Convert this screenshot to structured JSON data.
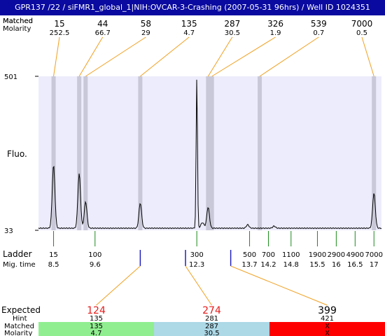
{
  "title": "GPR137 /22 / siFMR1_global_1|NIH:OVCAR-3-Crashing (2007-05-31 96hrs) / Well ID 1024351",
  "header_labels": {
    "matched": "Matched",
    "molarity": "Molarity"
  },
  "axis": {
    "ylabel": "Fluo.",
    "ytick_top": "501",
    "ytick_bottom": "33"
  },
  "ladder_labels": {
    "ladder": "Ladder",
    "mig_time": "Mig. time"
  },
  "bottom_labels": {
    "expected": "Expected",
    "hint": "Hint",
    "matched": "Matched",
    "molarity": "Molarity"
  },
  "colors": {
    "title_bg": "#0a0aa0",
    "plot_bg": "#ececfc",
    "band": "#c8c8d8",
    "orange": "#f0a020",
    "green": "#1a8a1a",
    "blue": "#2020c0",
    "expected_red": "#e81c1c",
    "green_box": "#90ee90",
    "blue_box": "#add8e6",
    "red_box": "#ff0000"
  },
  "chart_data": {
    "type": "line",
    "ylim": [
      33,
      501
    ],
    "x_range_mig_time": [
      8.1,
      17.2
    ],
    "peaks": [
      {
        "size": "15",
        "molarity": "252.5",
        "mig_time": 8.5,
        "height": 90
      },
      {
        "size": "44",
        "molarity": "66.7",
        "mig_time": 9.18,
        "height": 78
      },
      {
        "size": "58",
        "molarity": "29",
        "mig_time": 9.35,
        "height": 38
      },
      {
        "size": "135",
        "molarity": "4.7",
        "mig_time": 10.8,
        "height": 36
      },
      {
        "size": "287",
        "molarity": "30.5",
        "mig_time": 12.6,
        "height": 30
      },
      {
        "size": "326",
        "molarity": "1.9",
        "mig_time": 12.7,
        "height": 0
      },
      {
        "size": "539",
        "molarity": "0.7",
        "mig_time": 13.97,
        "height": 0
      },
      {
        "size": "7000",
        "molarity": "0.5",
        "mig_time": 17.0,
        "height": 50
      }
    ],
    "tall_peak_mig_time": 12.3,
    "ladder": [
      {
        "size": "15",
        "time": "8.5"
      },
      {
        "size": "100",
        "time": "9.6"
      },
      {
        "size": "300",
        "time": "12.3"
      },
      {
        "size": "500",
        "time": "13.7"
      },
      {
        "size": "700",
        "time": "14.2"
      },
      {
        "size": "1100",
        "time": "14.8"
      },
      {
        "size": "1900",
        "time": "15.5"
      },
      {
        "size": "2900",
        "time": "16"
      },
      {
        "size": "4900",
        "time": "16.5"
      },
      {
        "size": "7000",
        "time": "17"
      }
    ],
    "expected": [
      {
        "expected": "124",
        "hint": "135",
        "matched": "135",
        "molarity": "4.7",
        "color": "#90ee90"
      },
      {
        "expected": "274",
        "hint": "281",
        "matched": "287",
        "molarity": "30.5",
        "color": "#add8e6"
      },
      {
        "expected": "399",
        "hint": "421",
        "matched": "X",
        "molarity": "X",
        "color": "#ff0000"
      }
    ]
  }
}
